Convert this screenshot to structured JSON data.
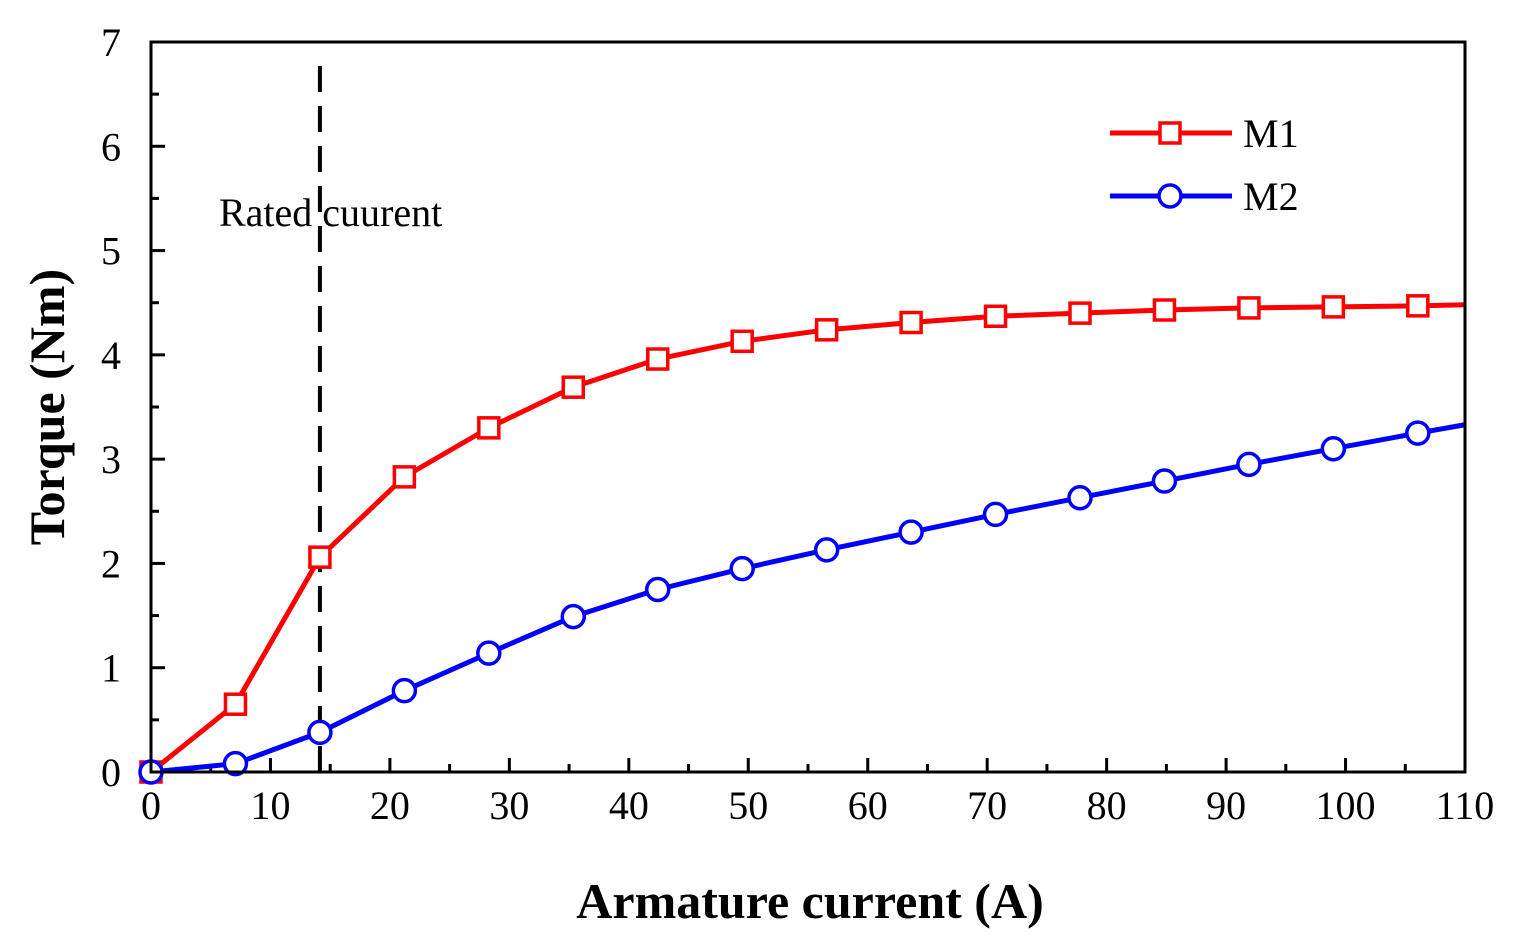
{
  "chart_data": {
    "type": "line",
    "title": "",
    "xlabel": "Armature current (A)",
    "ylabel": "Torque (Nm)",
    "xlim": [
      0,
      110
    ],
    "ylim": [
      0,
      7
    ],
    "xticks": [
      0,
      10,
      20,
      30,
      40,
      50,
      60,
      70,
      80,
      90,
      100,
      110
    ],
    "yticks": [
      0,
      1,
      2,
      3,
      4,
      5,
      6,
      7
    ],
    "grid": false,
    "legend_position": "top-right",
    "series": [
      {
        "name": "M1",
        "color": "#ff0000",
        "marker": "square",
        "x": [
          0,
          7.07,
          14.14,
          21.21,
          28.28,
          35.35,
          42.42,
          49.49,
          56.56,
          63.63,
          70.7,
          77.77,
          84.84,
          91.91,
          98.98,
          106.05,
          110
        ],
        "y": [
          0,
          0.65,
          2.06,
          2.83,
          3.3,
          3.69,
          3.96,
          4.13,
          4.24,
          4.31,
          4.37,
          4.4,
          4.43,
          4.45,
          4.46,
          4.47,
          4.48
        ]
      },
      {
        "name": "M2",
        "color": "#0000ff",
        "marker": "circle",
        "x": [
          0,
          7.07,
          14.14,
          21.21,
          28.28,
          35.35,
          42.42,
          49.49,
          56.56,
          63.63,
          70.7,
          77.77,
          84.84,
          91.91,
          98.98,
          106.05,
          110
        ],
        "y": [
          0,
          0.08,
          0.38,
          0.78,
          1.14,
          1.49,
          1.75,
          1.95,
          2.13,
          2.3,
          2.47,
          2.63,
          2.79,
          2.95,
          3.1,
          3.25,
          3.33
        ]
      }
    ],
    "annotations": [
      {
        "text": "Rated cuurent",
        "x": 14.14,
        "line_style": "dashed"
      }
    ]
  }
}
